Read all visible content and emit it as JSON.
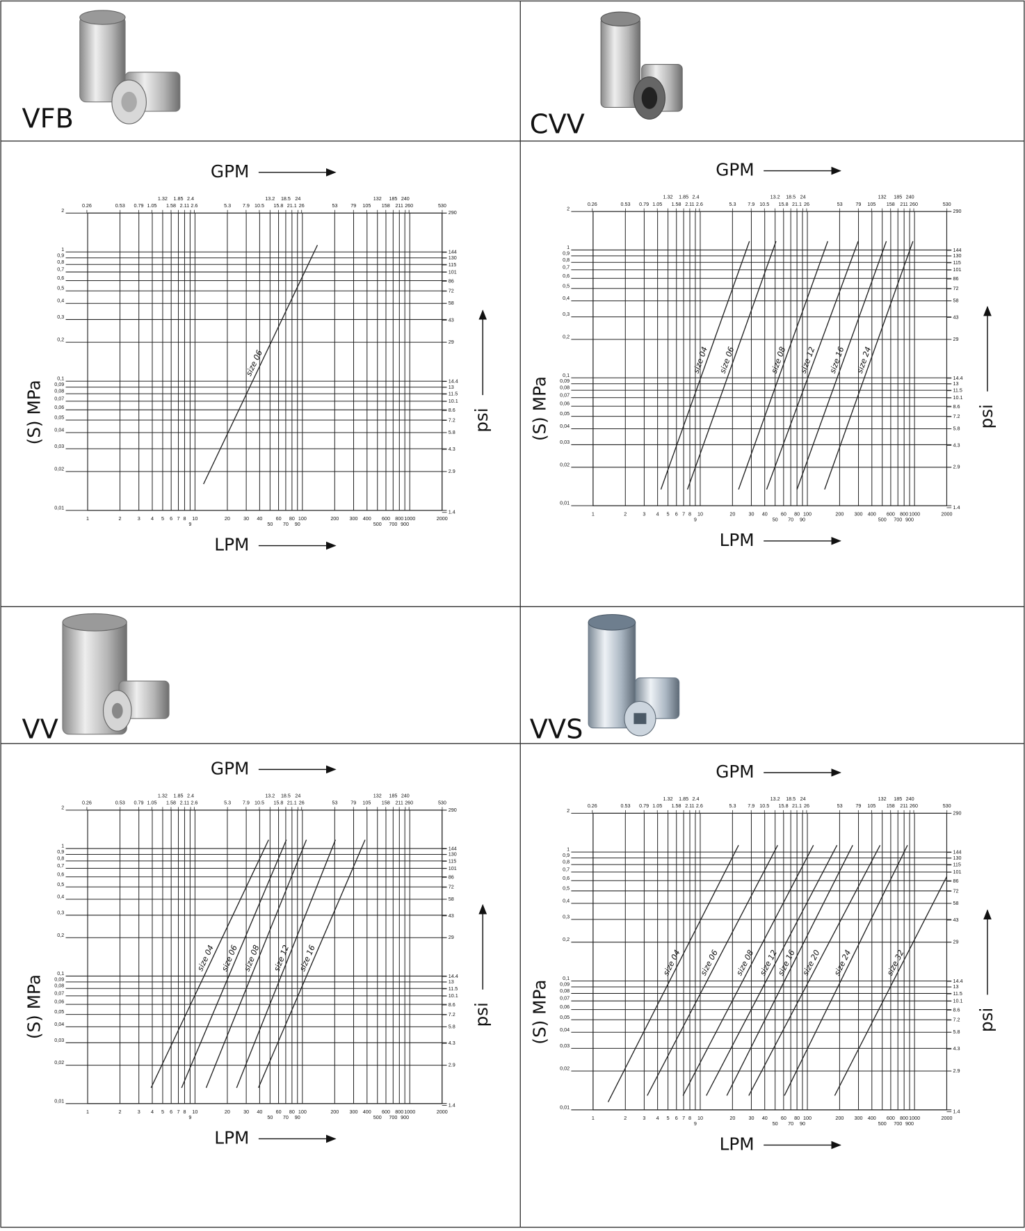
{
  "products": [
    "VFB",
    "CVV",
    "VV",
    "VVS"
  ],
  "chart_data": [
    {
      "type": "line",
      "xlabel": "LPM",
      "x2label": "GPM",
      "ylabel": "(S) MPa",
      "y2label": "psi",
      "xscale": "log",
      "yscale": "log",
      "grid": true,
      "color": "#222222",
      "xlim": [
        1,
        2000
      ],
      "x2lim": [
        0.2642,
        528.3
      ],
      "ylim": [
        0.01,
        2
      ],
      "y2lim": [
        1.45,
        290
      ],
      "xticks": [
        1,
        2,
        3,
        4,
        5,
        6,
        7,
        8,
        9,
        10,
        20,
        30,
        40,
        50,
        60,
        70,
        80,
        90,
        100,
        200,
        300,
        400,
        500,
        600,
        700,
        800,
        900,
        1000,
        2000
      ],
      "x2ticks": [
        0.26,
        0.53,
        0.79,
        1.05,
        1.32,
        1.58,
        1.85,
        2.11,
        2.4,
        2.6,
        5.3,
        7.9,
        10.5,
        13.2,
        15.8,
        18.5,
        21.1,
        24,
        26,
        53,
        79,
        105,
        132,
        158,
        185,
        211,
        240,
        260,
        530
      ],
      "yticks": [
        2,
        1,
        {
          "value": 0.9,
          "label": "0,9"
        },
        {
          "value": 0.8,
          "label": "0,8"
        },
        {
          "value": 0.7,
          "label": "0,7"
        },
        {
          "value": 0.6,
          "label": "0,6"
        },
        {
          "value": 0.5,
          "label": "0,5"
        },
        {
          "value": 0.4,
          "label": "0,4"
        },
        {
          "value": 0.3,
          "label": "0,3"
        },
        {
          "value": 0.2,
          "label": "0,2"
        },
        {
          "value": 0.1,
          "label": "0,1"
        },
        {
          "value": 0.09,
          "label": "0,09"
        },
        {
          "value": 0.08,
          "label": "0,08"
        },
        {
          "value": 0.07,
          "label": "0,07"
        },
        {
          "value": 0.06,
          "label": "0,06"
        },
        {
          "value": 0.05,
          "label": "0,05"
        },
        {
          "value": 0.04,
          "label": "0,04"
        },
        {
          "value": 0.03,
          "label": "0,03"
        },
        {
          "value": 0.02,
          "label": "0,02"
        },
        {
          "value": 0.01,
          "label": "0,01"
        }
      ],
      "y2ticks": [
        290,
        144,
        130,
        115,
        101,
        86,
        72,
        58,
        43,
        29,
        14.4,
        13,
        11.5,
        10.1,
        8.6,
        7.2,
        5.8,
        4.3,
        2.9,
        1.4
      ],
      "series": [
        {
          "name": "size 06",
          "x": [
            12,
            138
          ],
          "values": [
            0.016,
            1.13
          ]
        }
      ]
    },
    {
      "type": "line",
      "xlabel": "LPM",
      "x2label": "GPM",
      "ylabel": "(S) MPa",
      "y2label": "psi",
      "xscale": "log",
      "yscale": "log",
      "grid": true,
      "color": "#222222",
      "xlim": [
        1,
        2000
      ],
      "x2lim": [
        0.2642,
        528.3
      ],
      "ylim": [
        0.01,
        2
      ],
      "y2lim": [
        1.45,
        290
      ],
      "xticks": [
        1,
        2,
        3,
        4,
        5,
        6,
        7,
        8,
        9,
        10,
        20,
        30,
        40,
        50,
        60,
        70,
        80,
        90,
        100,
        200,
        300,
        400,
        500,
        600,
        700,
        800,
        900,
        1000,
        2000
      ],
      "x2ticks": [
        0.26,
        0.53,
        0.79,
        1.05,
        1.32,
        1.58,
        1.85,
        2.11,
        2.4,
        2.6,
        5.3,
        7.9,
        10.5,
        13.2,
        15.8,
        18.5,
        21.1,
        24,
        26,
        53,
        79,
        105,
        132,
        158,
        185,
        211,
        240,
        260,
        530
      ],
      "yticks": [
        2,
        1,
        {
          "value": 0.9,
          "label": "0,9"
        },
        {
          "value": 0.8,
          "label": "0,8"
        },
        {
          "value": 0.7,
          "label": "0,7"
        },
        {
          "value": 0.6,
          "label": "0,6"
        },
        {
          "value": 0.5,
          "label": "0,5"
        },
        {
          "value": 0.4,
          "label": "0,4"
        },
        {
          "value": 0.3,
          "label": "0,3"
        },
        {
          "value": 0.2,
          "label": "0,2"
        },
        {
          "value": 0.1,
          "label": "0,1"
        },
        {
          "value": 0.09,
          "label": "0,09"
        },
        {
          "value": 0.08,
          "label": "0,08"
        },
        {
          "value": 0.07,
          "label": "0,07"
        },
        {
          "value": 0.06,
          "label": "0,06"
        },
        {
          "value": 0.05,
          "label": "0,05"
        },
        {
          "value": 0.04,
          "label": "0,04"
        },
        {
          "value": 0.03,
          "label": "0,03"
        },
        {
          "value": 0.02,
          "label": "0,02"
        },
        {
          "value": 0.01,
          "label": "0,01"
        }
      ],
      "y2ticks": [
        290,
        144,
        130,
        115,
        101,
        86,
        72,
        58,
        43,
        29,
        14.4,
        13,
        11.5,
        10.1,
        8.6,
        7.2,
        5.8,
        4.3,
        2.9,
        1.4
      ],
      "series": [
        {
          "name": "size 04",
          "x": [
            4.3,
            28.8
          ],
          "values": [
            0.0134,
            1.17
          ]
        },
        {
          "name": "size 06",
          "x": [
            7.6,
            51
          ],
          "values": [
            0.0134,
            1.17
          ]
        },
        {
          "name": "size 08",
          "x": [
            22.8,
            155
          ],
          "values": [
            0.0134,
            1.17
          ]
        },
        {
          "name": "size 12",
          "x": [
            41.7,
            298
          ],
          "values": [
            0.0134,
            1.17
          ]
        },
        {
          "name": "size 16",
          "x": [
            80,
            546
          ],
          "values": [
            0.0134,
            1.17
          ]
        },
        {
          "name": "size 24",
          "x": [
            145,
            967
          ],
          "values": [
            0.0134,
            1.17
          ]
        }
      ]
    },
    {
      "type": "line",
      "xlabel": "LPM",
      "x2label": "GPM",
      "ylabel": "(S) MPa",
      "y2label": "psi",
      "xscale": "log",
      "yscale": "log",
      "grid": true,
      "color": "#222222",
      "xlim": [
        1,
        2000
      ],
      "x2lim": [
        0.2642,
        528.3
      ],
      "ylim": [
        0.01,
        2
      ],
      "y2lim": [
        1.45,
        290
      ],
      "xticks": [
        1,
        2,
        3,
        4,
        5,
        6,
        7,
        8,
        9,
        10,
        20,
        30,
        40,
        50,
        60,
        70,
        80,
        90,
        100,
        200,
        300,
        400,
        500,
        600,
        700,
        800,
        900,
        1000,
        2000
      ],
      "x2ticks": [
        0.26,
        0.53,
        0.79,
        1.05,
        1.32,
        1.58,
        1.85,
        2.11,
        2.4,
        2.6,
        5.3,
        7.9,
        10.5,
        13.2,
        15.8,
        18.5,
        21.1,
        24,
        26,
        53,
        79,
        105,
        132,
        158,
        185,
        211,
        240,
        260,
        530
      ],
      "yticks": [
        2,
        1,
        {
          "value": 0.9,
          "label": "0,9"
        },
        {
          "value": 0.8,
          "label": "0,8"
        },
        {
          "value": 0.7,
          "label": "0,7"
        },
        {
          "value": 0.6,
          "label": "0,6"
        },
        {
          "value": 0.5,
          "label": "0,5"
        },
        {
          "value": 0.4,
          "label": "0,4"
        },
        {
          "value": 0.3,
          "label": "0,3"
        },
        {
          "value": 0.2,
          "label": "0,2"
        },
        {
          "value": 0.1,
          "label": "0,1"
        },
        {
          "value": 0.09,
          "label": "0,09"
        },
        {
          "value": 0.08,
          "label": "0,08"
        },
        {
          "value": 0.07,
          "label": "0,07"
        },
        {
          "value": 0.06,
          "label": "0,06"
        },
        {
          "value": 0.05,
          "label": "0,05"
        },
        {
          "value": 0.04,
          "label": "0,04"
        },
        {
          "value": 0.03,
          "label": "0,03"
        },
        {
          "value": 0.02,
          "label": "0,02"
        },
        {
          "value": 0.01,
          "label": "0,01"
        }
      ],
      "y2ticks": [
        290,
        144,
        130,
        115,
        101,
        86,
        72,
        58,
        43,
        29,
        14.4,
        13,
        11.5,
        10.1,
        8.6,
        7.2,
        5.8,
        4.3,
        2.9,
        1.4
      ],
      "series": [
        {
          "name": "size 04",
          "x": [
            3.9,
            48.5
          ],
          "values": [
            0.0133,
            1.17
          ]
        },
        {
          "name": "size 06",
          "x": [
            7.5,
            71
          ],
          "values": [
            0.0133,
            1.17
          ]
        },
        {
          "name": "size 08",
          "x": [
            12.7,
            109
          ],
          "values": [
            0.0133,
            1.17
          ]
        },
        {
          "name": "size 12",
          "x": [
            24.4,
            203
          ],
          "values": [
            0.0133,
            1.17
          ]
        },
        {
          "name": "size 16",
          "x": [
            39,
            384
          ],
          "values": [
            0.0133,
            1.17
          ]
        }
      ]
    },
    {
      "type": "line",
      "xlabel": "LPM",
      "x2label": "GPM",
      "ylabel": "(S) MPa",
      "y2label": "psi",
      "xscale": "log",
      "yscale": "log",
      "grid": true,
      "color": "#222222",
      "xlim": [
        1,
        2000
      ],
      "x2lim": [
        0.2642,
        528.3
      ],
      "ylim": [
        0.01,
        2
      ],
      "y2lim": [
        1.45,
        290
      ],
      "xticks": [
        1,
        2,
        3,
        4,
        5,
        6,
        7,
        8,
        9,
        10,
        20,
        30,
        40,
        50,
        60,
        70,
        80,
        90,
        100,
        200,
        300,
        400,
        500,
        600,
        700,
        800,
        900,
        1000,
        2000
      ],
      "x2ticks": [
        0.26,
        0.53,
        0.79,
        1.05,
        1.32,
        1.58,
        1.85,
        2.11,
        2.4,
        2.6,
        5.3,
        7.9,
        10.5,
        13.2,
        15.8,
        18.5,
        21.1,
        24,
        26,
        53,
        79,
        105,
        132,
        158,
        185,
        211,
        240,
        260,
        530
      ],
      "yticks": [
        2,
        1,
        {
          "value": 0.9,
          "label": "0,9"
        },
        {
          "value": 0.8,
          "label": "0,8"
        },
        {
          "value": 0.7,
          "label": "0,7"
        },
        {
          "value": 0.6,
          "label": "0,6"
        },
        {
          "value": 0.5,
          "label": "0,5"
        },
        {
          "value": 0.4,
          "label": "0,4"
        },
        {
          "value": 0.3,
          "label": "0,3"
        },
        {
          "value": 0.2,
          "label": "0,2"
        },
        {
          "value": 0.1,
          "label": "0,1"
        },
        {
          "value": 0.09,
          "label": "0,09"
        },
        {
          "value": 0.08,
          "label": "0,08"
        },
        {
          "value": 0.07,
          "label": "0,07"
        },
        {
          "value": 0.06,
          "label": "0,06"
        },
        {
          "value": 0.05,
          "label": "0,05"
        },
        {
          "value": 0.04,
          "label": "0,04"
        },
        {
          "value": 0.03,
          "label": "0,03"
        },
        {
          "value": 0.02,
          "label": "0,02"
        },
        {
          "value": 0.01,
          "label": "0,01"
        }
      ],
      "y2ticks": [
        290,
        144,
        130,
        115,
        101,
        86,
        72,
        58,
        43,
        29,
        14.4,
        13,
        11.5,
        10.1,
        8.6,
        7.2,
        5.8,
        4.3,
        2.9,
        1.4
      ],
      "series": [
        {
          "name": "size 04",
          "x": [
            1.38,
            22.8
          ],
          "values": [
            0.0115,
            1.13
          ]
        },
        {
          "name": "size 06",
          "x": [
            3.2,
            52.8
          ],
          "values": [
            0.0129,
            1.13
          ]
        },
        {
          "name": "size 08",
          "x": [
            6.9,
            114
          ],
          "values": [
            0.0129,
            1.13
          ]
        },
        {
          "name": "size 12",
          "x": [
            11.4,
            189
          ],
          "values": [
            0.0129,
            1.13
          ]
        },
        {
          "name": "size 16",
          "x": [
            17.7,
            265
          ],
          "values": [
            0.0129,
            1.13
          ]
        },
        {
          "name": "size 20",
          "x": [
            28.4,
            477
          ],
          "values": [
            0.0129,
            1.13
          ]
        },
        {
          "name": "size 24",
          "x": [
            61,
            860
          ],
          "values": [
            0.0129,
            1.13
          ]
        },
        {
          "name": "size 32",
          "x": [
            180,
            2000
          ],
          "values": [
            0.0129,
            0.645
          ]
        }
      ]
    }
  ]
}
